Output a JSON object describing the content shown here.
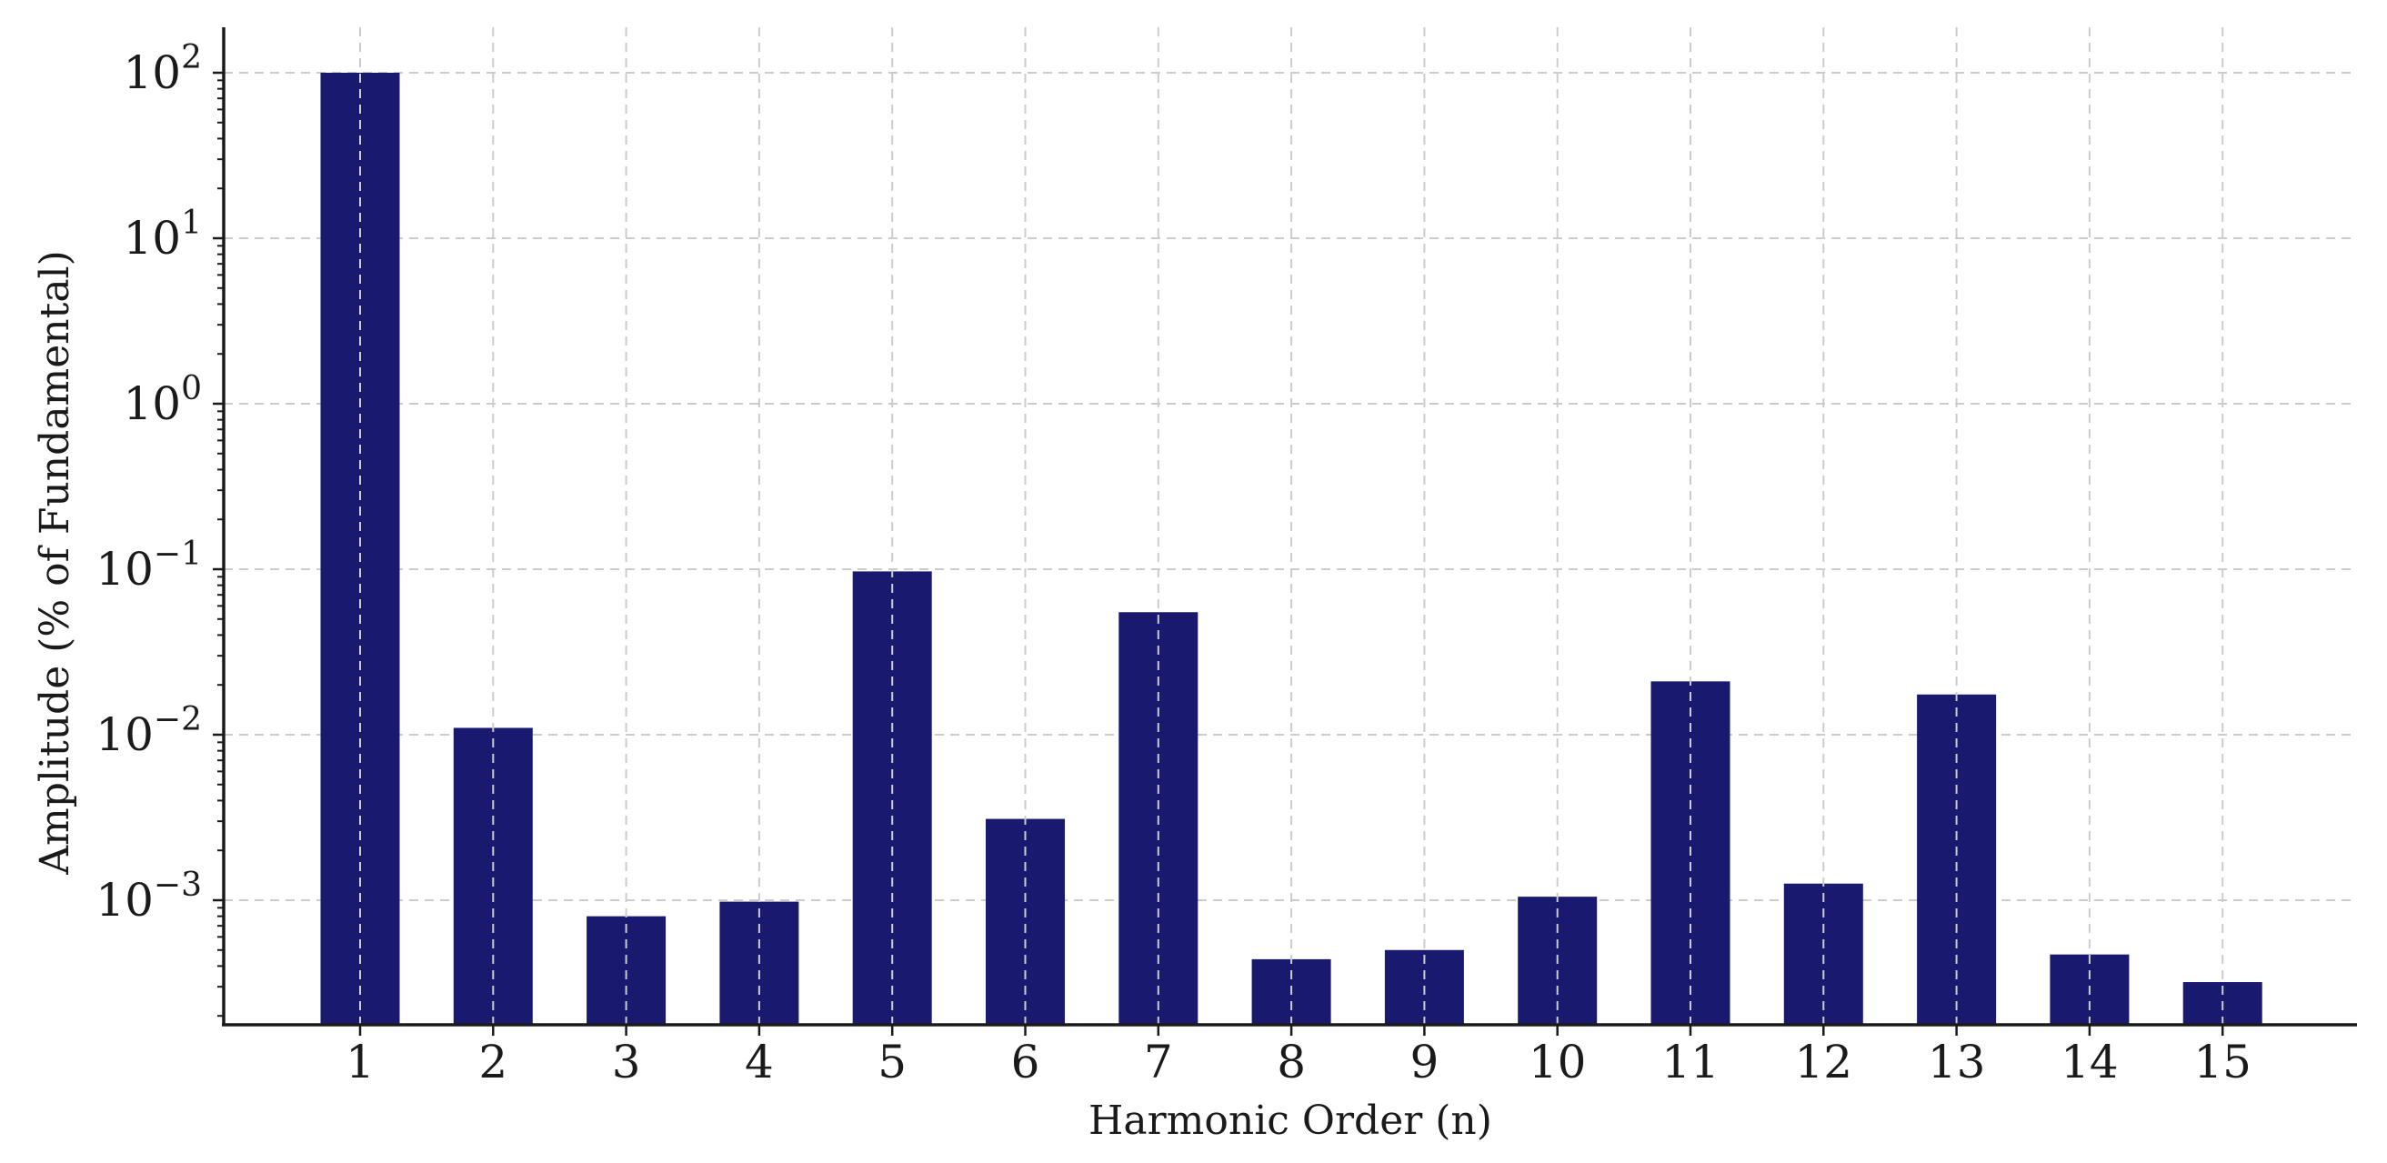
{
  "chart_data": {
    "type": "bar",
    "title": "",
    "xlabel": "Harmonic Order (n)",
    "ylabel": "Amplitude (% of Fundamental)",
    "y_scale": "log",
    "ylim": [
      0.00017,
      200
    ],
    "y_ticks": [
      {
        "value": 0.001,
        "base": "10",
        "exp": "−3"
      },
      {
        "value": 0.01,
        "base": "10",
        "exp": "−2"
      },
      {
        "value": 0.1,
        "base": "10",
        "exp": "−1"
      },
      {
        "value": 1,
        "base": "10",
        "exp": "0"
      },
      {
        "value": 10,
        "base": "10",
        "exp": "1"
      },
      {
        "value": 100,
        "base": "10",
        "exp": "2"
      }
    ],
    "categories": [
      "1",
      "2",
      "3",
      "4",
      "5",
      "6",
      "7",
      "8",
      "9",
      "10",
      "11",
      "12",
      "13",
      "14",
      "15"
    ],
    "values": [
      100,
      0.011,
      0.0008,
      0.00098,
      0.097,
      0.0031,
      0.055,
      0.00044,
      0.0005,
      0.00105,
      0.021,
      0.00126,
      0.0175,
      0.00047,
      0.00032
    ],
    "bar_color": "#191970",
    "grid": true,
    "legend": "none"
  }
}
